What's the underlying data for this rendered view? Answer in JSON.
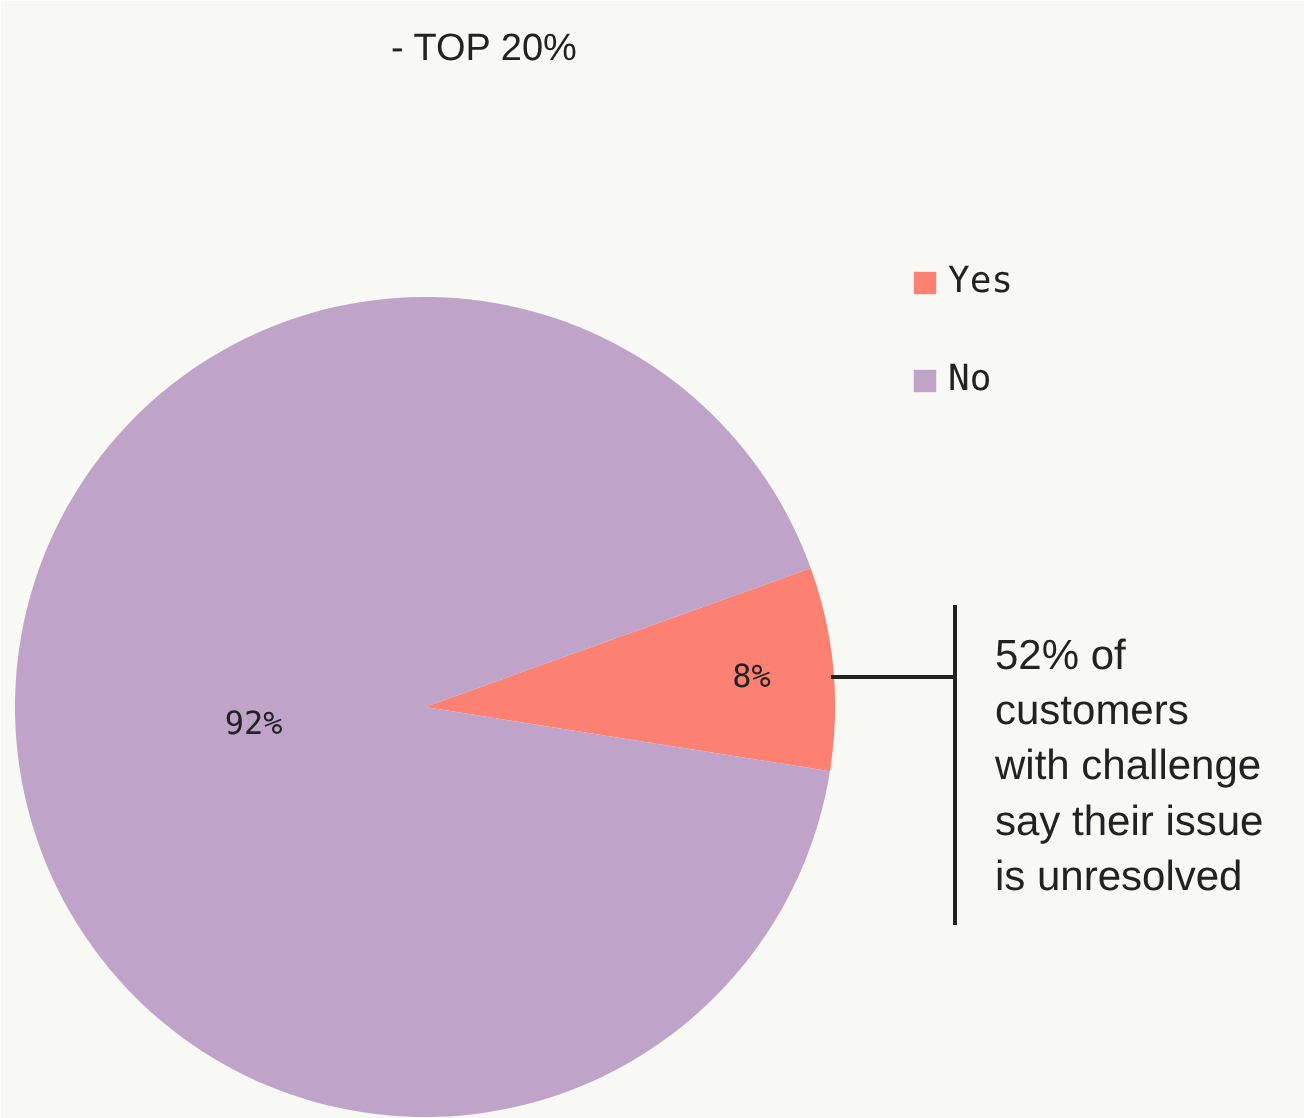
{
  "chart_data": {
    "type": "pie",
    "categories": [
      "Yes",
      "No"
    ],
    "values": [
      8,
      92
    ],
    "colors": [
      "#fd8172",
      "#c0a3c9"
    ],
    "value_labels": [
      "8%",
      "92%"
    ],
    "legend": "top right",
    "annotations": [
      "- TOP 20%",
      "52% of\ncustomers\nwith challenge\nsay their issue\nis unresolved"
    ]
  }
}
